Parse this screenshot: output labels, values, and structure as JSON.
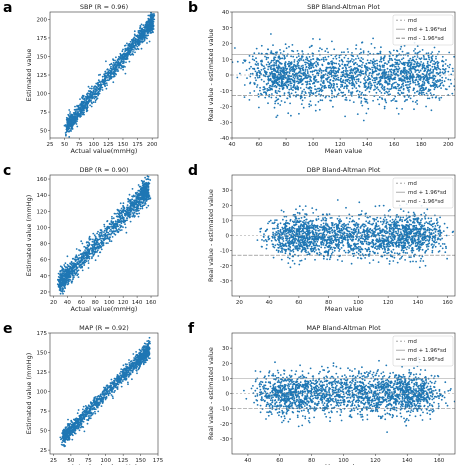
{
  "chart_data": [
    {
      "letter": "a",
      "type": "scatter",
      "title": "SBP (R = 0.96)",
      "xlabel": "Actual value(mmHg)",
      "ylabel": "Estimated value",
      "xlim": [
        25,
        210
      ],
      "ylim": [
        40,
        210
      ],
      "xticks": [
        25,
        50,
        75,
        100,
        125,
        150,
        175,
        200
      ],
      "yticks": [
        50,
        75,
        100,
        125,
        150,
        175,
        200
      ],
      "cloud": {
        "kind": "corr",
        "x0": 55,
        "x1": 200,
        "slope": 0.96,
        "intercept": 4,
        "spread": 6
      },
      "color": "#1f77b4"
    },
    {
      "letter": "b",
      "type": "scatter",
      "title": "SBP Bland-Altman Plot",
      "xlabel": "Mean value",
      "ylabel": "Real value - estimated value",
      "xlim": [
        40,
        205
      ],
      "ylim": [
        -40,
        40
      ],
      "xticks": [
        40,
        60,
        80,
        100,
        120,
        140,
        160,
        180,
        200
      ],
      "yticks": [
        -40,
        -30,
        -20,
        -10,
        0,
        10,
        20,
        30,
        40
      ],
      "cloud": {
        "kind": "ba",
        "x0": 45,
        "x1": 200,
        "spread": 8
      },
      "lines": {
        "md": 0,
        "upper": 13,
        "lower": -13
      },
      "legend": [
        "md",
        "md + 1.96*sd",
        "md - 1.96*sd"
      ],
      "color": "#1f77b4"
    },
    {
      "letter": "c",
      "type": "scatter",
      "title": "DBP (R = 0.90)",
      "xlabel": "Actual value(mmHg)",
      "ylabel": "Estimated value (mmHg)",
      "xlim": [
        15,
        170
      ],
      "ylim": [
        15,
        165
      ],
      "xticks": [
        20,
        40,
        60,
        80,
        100,
        120,
        140,
        160
      ],
      "yticks": [
        20,
        40,
        60,
        80,
        100,
        120,
        140,
        160
      ],
      "cloud": {
        "kind": "corr",
        "x0": 30,
        "x1": 155,
        "slope": 0.9,
        "intercept": 6,
        "spread": 7
      },
      "color": "#1f77b4"
    },
    {
      "letter": "d",
      "type": "scatter",
      "title": "DBP Bland-Altman Plot",
      "xlabel": "Mean value",
      "ylabel": "Real value - estimated value",
      "xlim": [
        15,
        165
      ],
      "ylim": [
        -40,
        40
      ],
      "xticks": [
        20,
        40,
        60,
        80,
        100,
        120,
        140,
        160
      ],
      "yticks": [
        -30,
        -20,
        -10,
        0,
        10,
        20,
        30
      ],
      "cloud": {
        "kind": "ba",
        "x0": 35,
        "x1": 155,
        "spread": 7
      },
      "lines": {
        "md": 0,
        "upper": 13,
        "lower": -13
      },
      "legend": [
        "md",
        "md + 1.96*sd",
        "md - 1.96*sd"
      ],
      "color": "#1f77b4"
    },
    {
      "letter": "e",
      "type": "scatter",
      "title": "MAP (R = 0.92)",
      "xlabel": "Actual value(mmHg)",
      "ylabel": "Estimated value (mmHg)",
      "xlim": [
        20,
        175
      ],
      "ylim": [
        20,
        175
      ],
      "xticks": [
        25,
        50,
        75,
        100,
        125,
        150,
        175
      ],
      "yticks": [
        25,
        50,
        75,
        100,
        125,
        150,
        175
      ],
      "cloud": {
        "kind": "corr",
        "x0": 40,
        "x1": 160,
        "slope": 0.92,
        "intercept": 5,
        "spread": 5
      },
      "color": "#1f77b4"
    },
    {
      "letter": "f",
      "type": "scatter",
      "title": "MAP Bland-Altman Plot",
      "xlabel": "Mean value",
      "ylabel": "Real value - estimated value",
      "xlim": [
        30,
        170
      ],
      "ylim": [
        -40,
        40
      ],
      "xticks": [
        40,
        60,
        80,
        100,
        120,
        140,
        160
      ],
      "yticks": [
        -30,
        -20,
        -10,
        0,
        10,
        20,
        30
      ],
      "cloud": {
        "kind": "ba",
        "x0": 40,
        "x1": 160,
        "spread": 7
      },
      "lines": {
        "md": 0,
        "upper": 10,
        "lower": -10
      },
      "legend": [
        "md",
        "md + 1.96*sd",
        "md - 1.96*sd"
      ],
      "color": "#1f77b4"
    }
  ]
}
